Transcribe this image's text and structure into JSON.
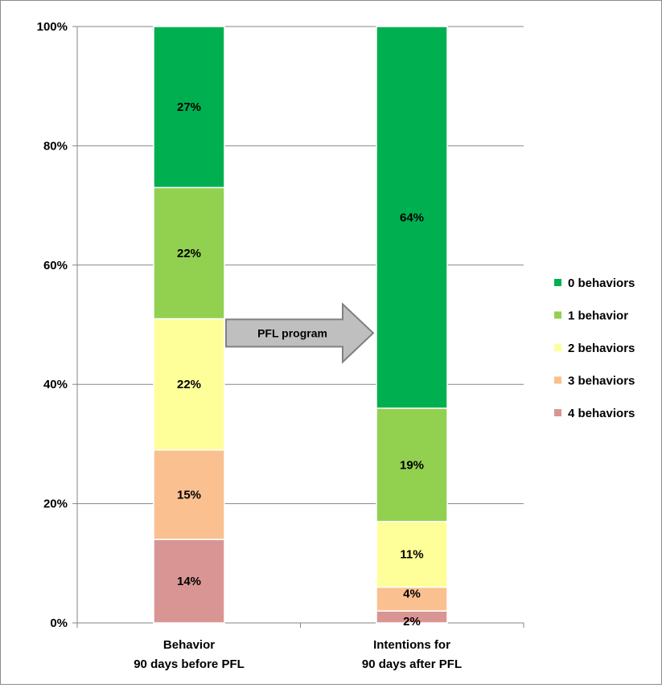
{
  "chart_data": {
    "type": "bar",
    "stacked": true,
    "categories": [
      "Behavior\n90 days before PFL",
      "Intentions for\n90 days after PFL"
    ],
    "category_lines": [
      [
        "Behavior",
        "90 days before PFL"
      ],
      [
        "Intentions for",
        "90 days after PFL"
      ]
    ],
    "series": [
      {
        "name": "4 behaviors",
        "color": "#d99594",
        "values": [
          14,
          2
        ],
        "labels": [
          "14%",
          "2%"
        ]
      },
      {
        "name": "3 behaviors",
        "color": "#fac090",
        "values": [
          15,
          4
        ],
        "labels": [
          "15%",
          "4%"
        ]
      },
      {
        "name": "2 behaviors",
        "color": "#ffff99",
        "values": [
          22,
          11
        ],
        "labels": [
          "22%",
          "11%"
        ]
      },
      {
        "name": "1 behavior",
        "color": "#92d050",
        "values": [
          22,
          19
        ],
        "labels": [
          "22%",
          "19%"
        ]
      },
      {
        "name": "0 behaviors",
        "color": "#00b050",
        "values": [
          27,
          64
        ],
        "labels": [
          "27%",
          "64%"
        ]
      }
    ],
    "legend_order": [
      "0 behaviors",
      "1 behavior",
      "2 behaviors",
      "3 behaviors",
      "4 behaviors"
    ],
    "ylim": [
      0,
      100
    ],
    "yticks": [
      0,
      20,
      40,
      60,
      80,
      100
    ],
    "ytick_labels": [
      "0%",
      "20%",
      "40%",
      "60%",
      "80%",
      "100%"
    ],
    "grid": true,
    "legend_position": "right",
    "annotation": {
      "text": "PFL program",
      "type": "arrow"
    }
  }
}
